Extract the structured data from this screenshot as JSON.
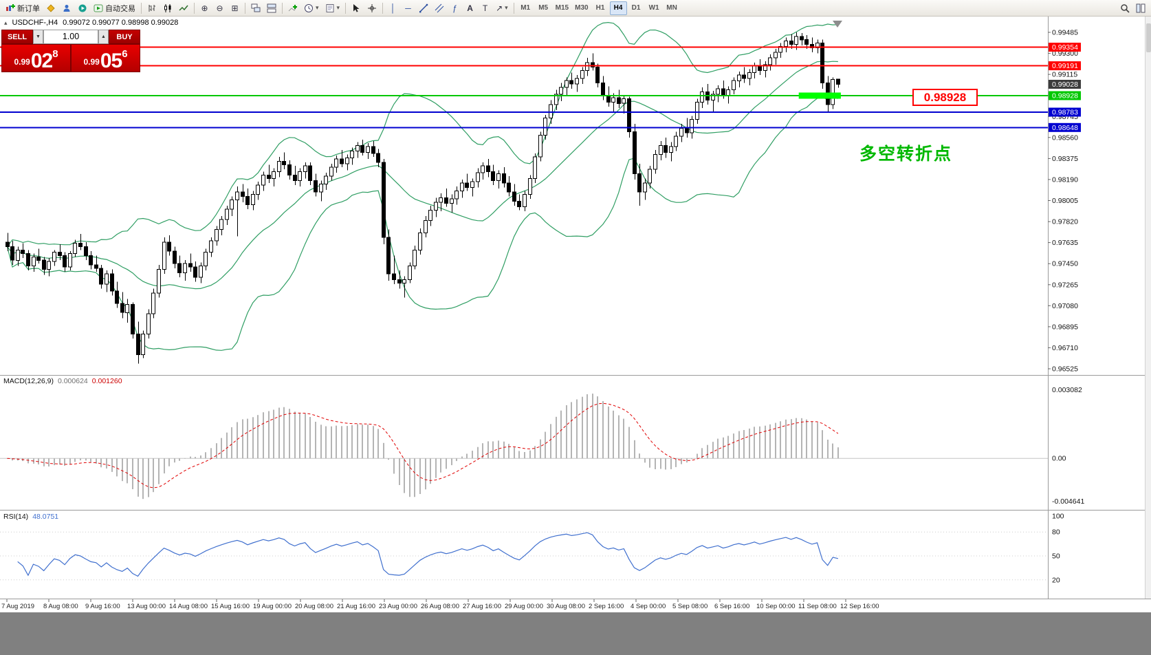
{
  "window": {
    "background": "#ffffff",
    "footer_color": "#808080"
  },
  "toolbar": {
    "new_order_label": "新订单",
    "autotrading_label": "自动交易",
    "timeframes": [
      "M1",
      "M5",
      "M15",
      "M30",
      "H1",
      "H4",
      "D1",
      "W1",
      "MN"
    ],
    "active_timeframe": "H4"
  },
  "chart": {
    "symbol_period": "USDCHF-,H4",
    "ohlc_text": "0.99072 0.99077 0.98998 0.99028"
  },
  "trade_panel": {
    "sell_label": "SELL",
    "buy_label": "BUY",
    "volume": "1.00",
    "sell_price_prefix": "0.99",
    "sell_price_big": "02",
    "sell_price_sup": "8",
    "buy_price_prefix": "0.99",
    "buy_price_big": "05",
    "buy_price_sup": "6"
  },
  "annotations": {
    "turning_point_text": "多空转折点",
    "turning_point_color": "#00b800",
    "price_box_text": "0.98928",
    "price_box_color": "#ff0000"
  },
  "price_axis": {
    "ticks": [
      "0.99485",
      "0.99300",
      "0.99115",
      "0.98930",
      "0.98745",
      "0.98560",
      "0.98375",
      "0.98190",
      "0.98005",
      "0.97820",
      "0.97635",
      "0.97450",
      "0.97265",
      "0.97080",
      "0.96895",
      "0.96710",
      "0.96525"
    ]
  },
  "macd": {
    "label": "MACD(12,26,9)",
    "value_main": "0.000624",
    "value_signal": "0.001260",
    "axis_top": "0.003082",
    "axis_zero": "0.00",
    "axis_bottom": "-0.004641",
    "histogram_color": "#b4b4b4",
    "signal_color": "#e00000"
  },
  "rsi": {
    "label": "RSI(14)",
    "value": "48.0751",
    "axis_labels": [
      100,
      80,
      50,
      20
    ],
    "line_color": "#3f6fce"
  },
  "date_axis": {
    "labels": [
      "7 Aug 2019",
      "8 Aug 08:00",
      "9 Aug 16:00",
      "13 Aug 00:00",
      "14 Aug 08:00",
      "15 Aug 16:00",
      "19 Aug 00:00",
      "20 Aug 08:00",
      "21 Aug 16:00",
      "23 Aug 00:00",
      "26 Aug 08:00",
      "27 Aug 16:00",
      "29 Aug 00:00",
      "30 Aug 08:00",
      "2 Sep 16:00",
      "4 Sep 00:00",
      "5 Sep 08:00",
      "6 Sep 16:00",
      "10 Sep 00:00",
      "11 Sep 08:00",
      "12 Sep 16:00"
    ]
  },
  "chart_data": {
    "type": "candlestick",
    "symbol": "USDCHF",
    "timeframe": "H4",
    "price_scale": 100000,
    "y_axis_range": [
      0.96525,
      0.99485
    ],
    "bollinger": {
      "period": 20,
      "deviation": 2,
      "color": "#2f9e63"
    },
    "levels": [
      {
        "label": "0.99354",
        "price": 0.99354,
        "color": "#ff0000",
        "width": 2,
        "line": true
      },
      {
        "label": "0.99191",
        "price": 0.99191,
        "color": "#ff0000",
        "width": 2,
        "line": true
      },
      {
        "label": "0.99028",
        "price": 0.99028,
        "color": "#3c3c3c",
        "width": 1,
        "line": false,
        "current": true
      },
      {
        "label": "0.98928",
        "price": 0.98928,
        "color": "#00c800",
        "width": 2,
        "line": true
      },
      {
        "label": "0.98783",
        "price": 0.98783,
        "color": "#0000d0",
        "width": 2,
        "line": true
      },
      {
        "label": "0.98648",
        "price": 0.98648,
        "color": "#0000d0",
        "width": 2,
        "line": true
      }
    ],
    "highlight": {
      "start_index": 152,
      "end_index": 159,
      "price": 0.98928,
      "color": "#00ff00"
    },
    "ohlc": [
      [
        97640,
        97720,
        97560,
        97600
      ],
      [
        97600,
        97650,
        97440,
        97480
      ],
      [
        97480,
        97600,
        97430,
        97570
      ],
      [
        97570,
        97630,
        97500,
        97540
      ],
      [
        97540,
        97570,
        97390,
        97430
      ],
      [
        97430,
        97540,
        97380,
        97510
      ],
      [
        97510,
        97580,
        97450,
        97480
      ],
      [
        97480,
        97510,
        97350,
        97400
      ],
      [
        97400,
        97500,
        97340,
        97470
      ],
      [
        97470,
        97570,
        97430,
        97550
      ],
      [
        97550,
        97620,
        97480,
        97520
      ],
      [
        97520,
        97550,
        97380,
        97420
      ],
      [
        97420,
        97560,
        97390,
        97540
      ],
      [
        97540,
        97660,
        97510,
        97630
      ],
      [
        97630,
        97710,
        97570,
        97600
      ],
      [
        97600,
        97640,
        97480,
        97520
      ],
      [
        97520,
        97560,
        97400,
        97440
      ],
      [
        97440,
        97520,
        97380,
        97410
      ],
      [
        97410,
        97440,
        97230,
        97270
      ],
      [
        97270,
        97390,
        97200,
        97360
      ],
      [
        97360,
        97400,
        97170,
        97210
      ],
      [
        97210,
        97290,
        97060,
        97100
      ],
      [
        97100,
        97200,
        96970,
        97020
      ],
      [
        97020,
        97140,
        96930,
        97090
      ],
      [
        97090,
        97110,
        96790,
        96830
      ],
      [
        96830,
        96940,
        96570,
        96650
      ],
      [
        96650,
        96860,
        96620,
        96830
      ],
      [
        96830,
        97050,
        96790,
        97010
      ],
      [
        97010,
        97230,
        96970,
        97190
      ],
      [
        97190,
        97440,
        97150,
        97400
      ],
      [
        97400,
        97680,
        97360,
        97640
      ],
      [
        97640,
        97700,
        97520,
        97560
      ],
      [
        97560,
        97600,
        97410,
        97450
      ],
      [
        97450,
        97520,
        97330,
        97370
      ],
      [
        97370,
        97480,
        97300,
        97450
      ],
      [
        97450,
        97540,
        97380,
        97420
      ],
      [
        97420,
        97470,
        97290,
        97330
      ],
      [
        97330,
        97460,
        97280,
        97430
      ],
      [
        97430,
        97580,
        97390,
        97550
      ],
      [
        97550,
        97680,
        97510,
        97650
      ],
      [
        97650,
        97780,
        97610,
        97750
      ],
      [
        97750,
        97870,
        97700,
        97840
      ],
      [
        97840,
        97960,
        97790,
        97930
      ],
      [
        97930,
        98040,
        97870,
        98010
      ],
      [
        98010,
        98130,
        97690,
        98080
      ],
      [
        98080,
        98150,
        97990,
        98040
      ],
      [
        98040,
        98110,
        97930,
        97970
      ],
      [
        97970,
        98090,
        97920,
        98060
      ],
      [
        98060,
        98170,
        98010,
        98140
      ],
      [
        98140,
        98260,
        98090,
        98230
      ],
      [
        98230,
        98320,
        98160,
        98200
      ],
      [
        98200,
        98290,
        98130,
        98260
      ],
      [
        98260,
        98390,
        98210,
        98350
      ],
      [
        98350,
        98430,
        98280,
        98320
      ],
      [
        98320,
        98360,
        98190,
        98230
      ],
      [
        98230,
        98310,
        98140,
        98180
      ],
      [
        98180,
        98290,
        98130,
        98260
      ],
      [
        98260,
        98340,
        98200,
        98310
      ],
      [
        98310,
        98340,
        98140,
        98180
      ],
      [
        98180,
        98240,
        98040,
        98080
      ],
      [
        98080,
        98180,
        98000,
        98150
      ],
      [
        98150,
        98250,
        98100,
        98220
      ],
      [
        98220,
        98330,
        98180,
        98300
      ],
      [
        98300,
        98400,
        98250,
        98370
      ],
      [
        98370,
        98450,
        98300,
        98330
      ],
      [
        98330,
        98410,
        98270,
        98380
      ],
      [
        98380,
        98470,
        98320,
        98440
      ],
      [
        98440,
        98520,
        98380,
        98490
      ],
      [
        98490,
        98540,
        98400,
        98430
      ],
      [
        98430,
        98510,
        98370,
        98480
      ],
      [
        98480,
        98530,
        98390,
        98420
      ],
      [
        98420,
        98460,
        98300,
        98340
      ],
      [
        98340,
        98370,
        97620,
        97680
      ],
      [
        97680,
        97750,
        97300,
        97360
      ],
      [
        97360,
        97520,
        97270,
        97310
      ],
      [
        97310,
        97390,
        97230,
        97280
      ],
      [
        97280,
        97340,
        97150,
        97310
      ],
      [
        97310,
        97460,
        97280,
        97430
      ],
      [
        97430,
        97610,
        97400,
        97570
      ],
      [
        97570,
        97760,
        97530,
        97720
      ],
      [
        97720,
        97870,
        97680,
        97830
      ],
      [
        97830,
        97960,
        97780,
        97920
      ],
      [
        97920,
        98030,
        97860,
        97990
      ],
      [
        97990,
        98070,
        97910,
        98030
      ],
      [
        98030,
        98110,
        97950,
        97980
      ],
      [
        97980,
        98060,
        97900,
        98020
      ],
      [
        98020,
        98130,
        97970,
        98090
      ],
      [
        98090,
        98190,
        98030,
        98160
      ],
      [
        98160,
        98240,
        98090,
        98120
      ],
      [
        98120,
        98200,
        98040,
        98170
      ],
      [
        98170,
        98290,
        98120,
        98250
      ],
      [
        98250,
        98340,
        98190,
        98310
      ],
      [
        98310,
        98370,
        98210,
        98260
      ],
      [
        98260,
        98320,
        98140,
        98180
      ],
      [
        98180,
        98270,
        98110,
        98240
      ],
      [
        98240,
        98300,
        98120,
        98160
      ],
      [
        98160,
        98220,
        98040,
        98080
      ],
      [
        98080,
        98150,
        97960,
        98000
      ],
      [
        98000,
        98060,
        97920,
        97950
      ],
      [
        97950,
        98090,
        97910,
        98060
      ],
      [
        98060,
        98230,
        98020,
        98200
      ],
      [
        98200,
        98420,
        98160,
        98390
      ],
      [
        98390,
        98610,
        98350,
        98580
      ],
      [
        98580,
        98760,
        98540,
        98730
      ],
      [
        98730,
        98890,
        98680,
        98850
      ],
      [
        98850,
        98980,
        98800,
        98940
      ],
      [
        98940,
        99040,
        98880,
        99000
      ],
      [
        99000,
        99090,
        98930,
        99060
      ],
      [
        99060,
        99130,
        98990,
        99030
      ],
      [
        99030,
        99110,
        98960,
        99080
      ],
      [
        99080,
        99180,
        99030,
        99150
      ],
      [
        99150,
        99260,
        99100,
        99220
      ],
      [
        99220,
        99300,
        99150,
        99180
      ],
      [
        99180,
        99210,
        99000,
        99040
      ],
      [
        99040,
        99100,
        98890,
        98930
      ],
      [
        98930,
        99010,
        98830,
        98870
      ],
      [
        98870,
        98950,
        98790,
        98910
      ],
      [
        98910,
        98980,
        98820,
        98860
      ],
      [
        98860,
        98930,
        98770,
        98900
      ],
      [
        98900,
        98920,
        98560,
        98610
      ],
      [
        98610,
        98680,
        98190,
        98240
      ],
      [
        98240,
        98330,
        97960,
        98080
      ],
      [
        98080,
        98200,
        98010,
        98160
      ],
      [
        98160,
        98310,
        98110,
        98280
      ],
      [
        98280,
        98450,
        98240,
        98410
      ],
      [
        98410,
        98530,
        98360,
        98490
      ],
      [
        98490,
        98560,
        98380,
        98430
      ],
      [
        98430,
        98520,
        98350,
        98480
      ],
      [
        98480,
        98610,
        98440,
        98570
      ],
      [
        98570,
        98680,
        98520,
        98640
      ],
      [
        98640,
        98730,
        98560,
        98600
      ],
      [
        98600,
        98750,
        98550,
        98720
      ],
      [
        98720,
        98900,
        98680,
        98870
      ],
      [
        98870,
        99000,
        98820,
        98960
      ],
      [
        98960,
        99030,
        98850,
        98890
      ],
      [
        98890,
        98970,
        98790,
        98940
      ],
      [
        98940,
        99020,
        98870,
        98990
      ],
      [
        98990,
        99060,
        98900,
        98930
      ],
      [
        98930,
        99010,
        98860,
        98980
      ],
      [
        98980,
        99090,
        98940,
        99060
      ],
      [
        99060,
        99140,
        99000,
        99110
      ],
      [
        99110,
        99180,
        99040,
        99080
      ],
      [
        99080,
        99160,
        99020,
        99130
      ],
      [
        99130,
        99220,
        99080,
        99190
      ],
      [
        99190,
        99250,
        99110,
        99150
      ],
      [
        99150,
        99230,
        99090,
        99200
      ],
      [
        99200,
        99290,
        99150,
        99260
      ],
      [
        99260,
        99340,
        99200,
        99310
      ],
      [
        99310,
        99390,
        99260,
        99360
      ],
      [
        99360,
        99440,
        99310,
        99410
      ],
      [
        99410,
        99470,
        99340,
        99380
      ],
      [
        99380,
        99485,
        99330,
        99450
      ],
      [
        99450,
        99480,
        99370,
        99420
      ],
      [
        99420,
        99460,
        99340,
        99380
      ],
      [
        99380,
        99440,
        99310,
        99350
      ],
      [
        99350,
        99420,
        99300,
        99390
      ],
      [
        99390,
        99420,
        98990,
        99040
      ],
      [
        99040,
        99100,
        98783,
        98850
      ],
      [
        98850,
        99090,
        98810,
        99070
      ],
      [
        99072,
        99077,
        98998,
        99028
      ]
    ]
  }
}
